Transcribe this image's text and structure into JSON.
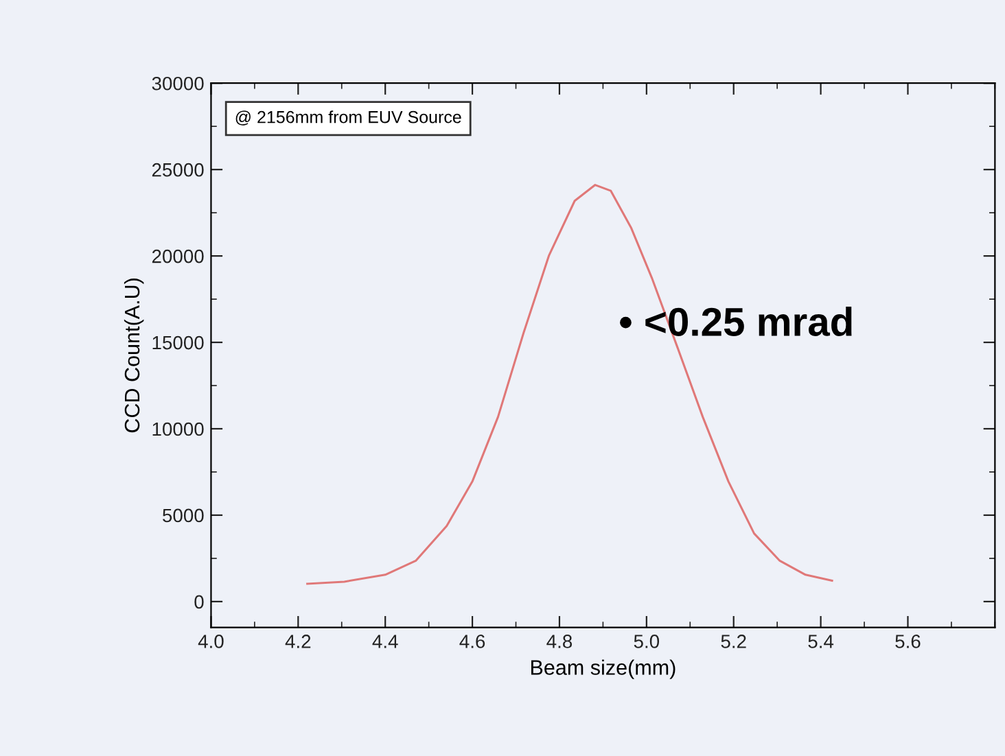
{
  "chart_data": {
    "type": "line",
    "xlabel": "Beam size(mm)",
    "ylabel": "CCD Count(A.U)",
    "annotations": [
      "@ 2156mm from EUV Source",
      "• <0.25 mrad"
    ],
    "x": [
      4.221,
      4.306,
      4.4,
      4.47,
      4.541,
      4.6,
      4.659,
      4.718,
      4.776,
      4.835,
      4.882,
      4.918,
      4.965,
      5.012,
      5.071,
      5.129,
      5.188,
      5.247,
      5.306,
      5.365,
      5.426
    ],
    "series": [
      {
        "color": "#e07878",
        "values": [
          1030,
          1150,
          1550,
          2360,
          4370,
          6950,
          10690,
          15580,
          20030,
          23190,
          24110,
          23770,
          21610,
          18740,
          14710,
          10690,
          6950,
          3940,
          2360,
          1550,
          1210
        ]
      }
    ],
    "xlim": [
      4.0,
      5.8
    ],
    "xticks": [
      {
        "value": 4.0,
        "label": "4.0"
      },
      4.2,
      4.4,
      4.6,
      4.8,
      {
        "value": 5.0,
        "label": "5.0"
      },
      5.2,
      5.4,
      5.6
    ],
    "ylim": [
      -1500,
      30000
    ],
    "yticks": [
      0,
      5000,
      10000,
      15000,
      20000,
      25000,
      30000
    ],
    "grid": false,
    "legend": false,
    "marker": "none",
    "line_style": "solid"
  }
}
